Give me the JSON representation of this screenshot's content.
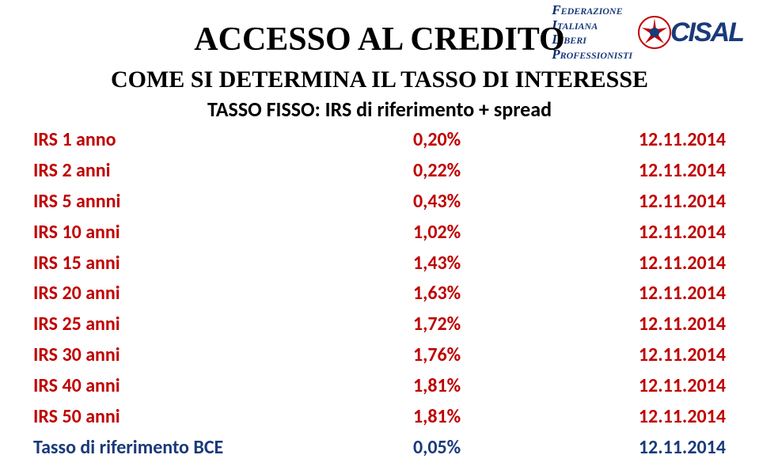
{
  "logo": {
    "lines": [
      "Federazione",
      "Italiana",
      "Liberi",
      "Professionisti"
    ],
    "brand": "CISAL",
    "text_color": "#1a3a7a"
  },
  "title": "ACCESSO AL CREDITO",
  "subtitle": "COME SI DETERMINA IL TASSO DI INTERESSE",
  "fixed_rate_line": {
    "prefix": "TASSO FISSO:",
    "suffix": " IRS di riferimento + spread"
  },
  "table": {
    "label_fontsize": 24,
    "row_colors": {
      "default": "#c00000",
      "bce": "#1a3a7a"
    },
    "rows": [
      {
        "label": "IRS 1 anno",
        "value": "0,20%",
        "date": "12.11.2014",
        "color_key": "default"
      },
      {
        "label": "IRS 2 anni",
        "value": "0,22%",
        "date": "12.11.2014",
        "color_key": "default"
      },
      {
        "label": "IRS 5 annni",
        "value": "0,43%",
        "date": "12.11.2014",
        "color_key": "default"
      },
      {
        "label": "IRS 10 anni",
        "value": "1,02%",
        "date": "12.11.2014",
        "color_key": "default"
      },
      {
        "label": "IRS 15 anni",
        "value": "1,43%",
        "date": "12.11.2014",
        "color_key": "default"
      },
      {
        "label": "IRS 20 anni",
        "value": "1,63%",
        "date": "12.11.2014",
        "color_key": "default"
      },
      {
        "label": "IRS 25 anni",
        "value": "1,72%",
        "date": "12.11.2014",
        "color_key": "default"
      },
      {
        "label": "IRS 30 anni",
        "value": "1,76%",
        "date": "12.11.2014",
        "color_key": "default"
      },
      {
        "label": "IRS 40 anni",
        "value": "1,81%",
        "date": "12.11.2014",
        "color_key": "default"
      },
      {
        "label": "IRS 50 anni",
        "value": "1,81%",
        "date": "12.11.2014",
        "color_key": "default"
      },
      {
        "label": "Tasso di riferimento BCE",
        "value": "0,05%",
        "date": "12.11.2014",
        "color_key": "bce"
      }
    ]
  }
}
